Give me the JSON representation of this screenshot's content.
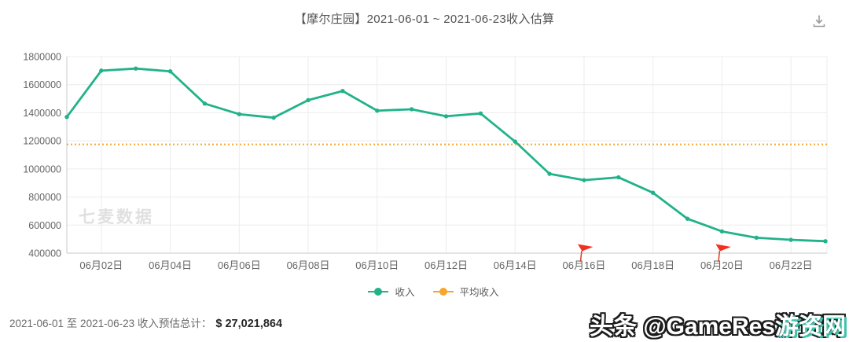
{
  "chart_data": {
    "type": "line",
    "title": "【摩尔庄园】2021-06-01 ~ 2021-06-23收入估算",
    "dates": [
      "06-01",
      "06-02",
      "06-03",
      "06-04",
      "06-05",
      "06-06",
      "06-07",
      "06-08",
      "06-09",
      "06-10",
      "06-11",
      "06-12",
      "06-13",
      "06-14",
      "06-15",
      "06-16",
      "06-17",
      "06-18",
      "06-19",
      "06-20",
      "06-21",
      "06-22",
      "06-23"
    ],
    "x_tick_labels": [
      "06月02日",
      "06月04日",
      "06月06日",
      "06月08日",
      "06月10日",
      "06月12日",
      "06月14日",
      "06月16日",
      "06月18日",
      "06月20日",
      "06月22日"
    ],
    "series": [
      {
        "name": "收入",
        "type": "line",
        "color": "#22b28a",
        "values": [
          1370000,
          1700000,
          1715000,
          1695000,
          1465000,
          1390000,
          1365000,
          1490000,
          1555000,
          1415000,
          1425000,
          1375000,
          1395000,
          1195000,
          965000,
          920000,
          940000,
          830000,
          645000,
          555000,
          510000,
          495000,
          485000
        ]
      },
      {
        "name": "平均收入",
        "type": "horizontal-dotted-line",
        "color": "#f7a62a",
        "value": 1174864
      }
    ],
    "ylim": [
      400000,
      1800000
    ],
    "y_ticks": [
      400000,
      600000,
      800000,
      1000000,
      1200000,
      1400000,
      1600000,
      1800000
    ],
    "grid": true,
    "legend_position": "bottom",
    "flags": [
      "06-16",
      "06-20"
    ],
    "flag_color": "#f2301f",
    "watermark": "七麦数据"
  },
  "footer": {
    "summary_label": "2021-06-01 至 2021-06-23 收入预估总计：",
    "summary_value": "$ 27,021,864"
  },
  "watermark_badge": {
    "prefix": "头条 @GameRes",
    "accent": "游资网"
  }
}
